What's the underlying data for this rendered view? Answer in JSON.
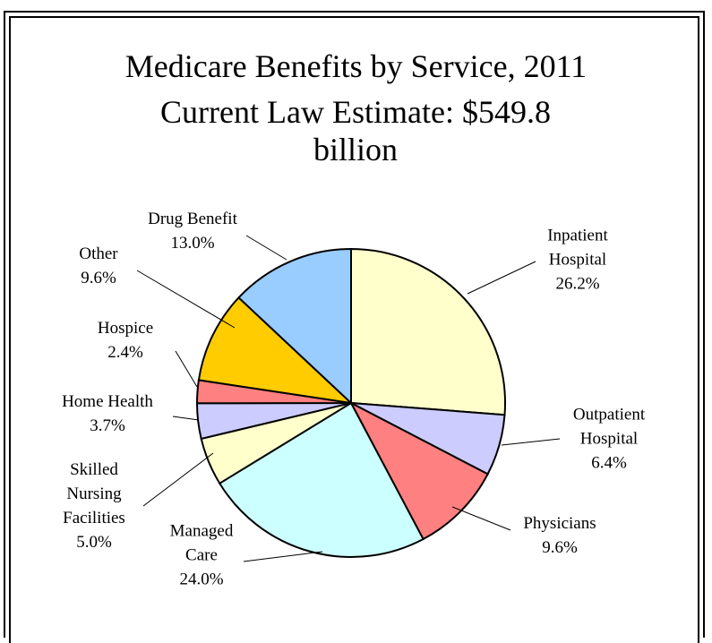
{
  "chart_data": {
    "type": "pie",
    "title": "Medicare Benefits by Service, 2011",
    "subtitle": "Current Law Estimate: $549.8 billion",
    "categories": [
      "Inpatient\nHospital",
      "Outpatient\nHospital",
      "Physicians",
      "Managed\nCare",
      "Skilled\nNursing\nFacilities",
      "Home Health",
      "Hospice",
      "Other",
      "Drug Benefit"
    ],
    "values": [
      26.2,
      6.4,
      9.6,
      24.0,
      5.0,
      3.7,
      2.4,
      9.6,
      13.0
    ],
    "value_labels": [
      "26.2%",
      "6.4%",
      "9.6%",
      "24.0%",
      "5.0%",
      "3.7%",
      "2.4%",
      "9.6%",
      "13.0%"
    ],
    "colors": [
      "#ffffcc",
      "#ccccff",
      "#ff8080",
      "#ccffff",
      "#ffffcc",
      "#ccccff",
      "#ff8080",
      "#ffcc00",
      "#99ccff"
    ]
  }
}
